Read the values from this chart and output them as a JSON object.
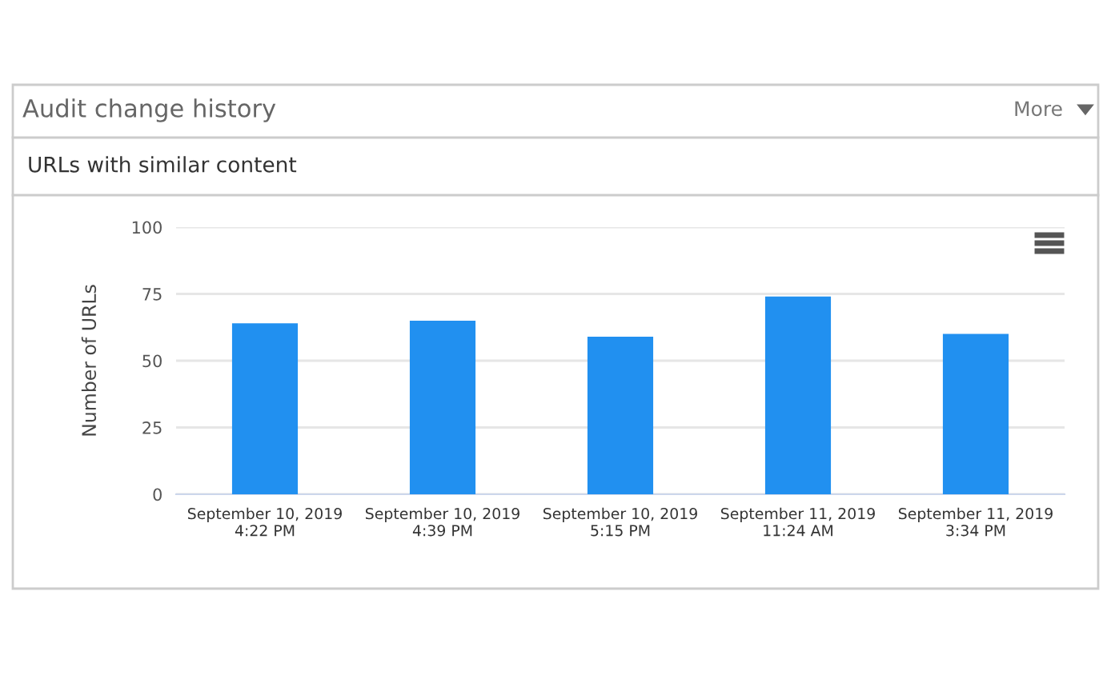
{
  "chart_data": {
    "type": "bar",
    "title": "Audit change history",
    "subtitle": "URLs with similar content",
    "annotations": [
      "More"
    ],
    "ylabel": "Number of URLs",
    "categories": [
      "September 10, 2019\n4:22 PM",
      "September 10, 2019\n4:39 PM",
      "September 10, 2019\n5:15 PM",
      "September 11, 2019\n11:24 AM",
      "September 11, 2019\n3:34 PM"
    ],
    "values": [
      64,
      65,
      59,
      74,
      60
    ],
    "color": "#2190f0",
    "ylim": [
      0,
      100
    ],
    "yticks": [
      0,
      25,
      50,
      75,
      100
    ],
    "grid": "y",
    "legend": false
  }
}
